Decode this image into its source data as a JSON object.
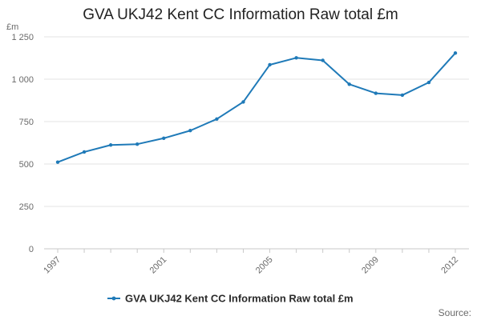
{
  "chart_data": {
    "type": "line",
    "title": "GVA UKJ42 Kent CC Information Raw total £m",
    "unit_label": "£m",
    "source_label": "Source:",
    "xlabel": "",
    "ylabel": "",
    "grid": true,
    "legend_placement": "bottom",
    "color": "#1f7ab8",
    "y_ticks": [
      0,
      250,
      500,
      750,
      1000,
      1250
    ],
    "y_tick_labels": [
      "0",
      "250",
      "500",
      "750",
      "1 000",
      "1 250"
    ],
    "ylim": [
      0,
      1250
    ],
    "x_tick_labels": [
      "1997",
      "2001",
      "2005",
      "2009",
      "2012"
    ],
    "x": [
      1997,
      1998,
      1999,
      2000,
      2001,
      2002,
      2003,
      2004,
      2005,
      2006,
      2007,
      2008,
      2009,
      2010,
      2011,
      2012
    ],
    "xlim": [
      1997,
      2012
    ],
    "series": [
      {
        "name": "GVA UKJ42 Kent CC Information Raw total £m",
        "values": [
          511,
          571,
          612,
          617,
          652,
          697,
          765,
          866,
          1085,
          1126,
          1111,
          970,
          917,
          906,
          981,
          1154
        ]
      }
    ]
  }
}
